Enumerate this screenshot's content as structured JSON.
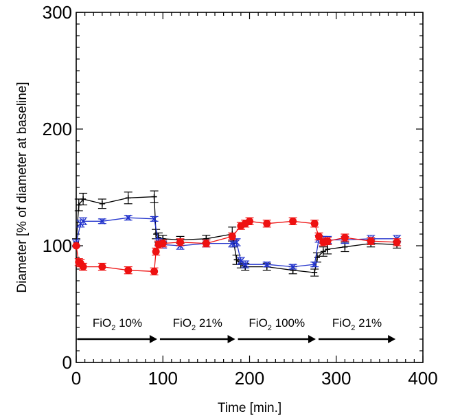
{
  "chart_data": {
    "type": "line",
    "xlabel": "Time [min.]",
    "ylabel": "Diameter [% of diameter at baseline]",
    "xlim": [
      0,
      400
    ],
    "ylim": [
      0,
      300
    ],
    "xticks": [
      "0",
      "100",
      "200",
      "300",
      "400"
    ],
    "yticks": [
      "0",
      "100",
      "200",
      "300"
    ],
    "grid": false,
    "legend": "none",
    "series": [
      {
        "color": "#000000",
        "marker": "plus",
        "points": [
          [
            0,
            103,
            3
          ],
          [
            3,
            135,
            5
          ],
          [
            8,
            140,
            5
          ],
          [
            30,
            136,
            4
          ],
          [
            60,
            141,
            5
          ],
          [
            90,
            142,
            5
          ],
          [
            92,
            110,
            4
          ],
          [
            95,
            107,
            4
          ],
          [
            100,
            106,
            3
          ],
          [
            120,
            105,
            3
          ],
          [
            150,
            106,
            3
          ],
          [
            180,
            110,
            6
          ],
          [
            182,
            102,
            3
          ],
          [
            185,
            88,
            4
          ],
          [
            190,
            84,
            3
          ],
          [
            195,
            82,
            3
          ],
          [
            220,
            82,
            3
          ],
          [
            250,
            79,
            3
          ],
          [
            275,
            77,
            3
          ],
          [
            278,
            90,
            4
          ],
          [
            285,
            95,
            4
          ],
          [
            290,
            97,
            4
          ],
          [
            310,
            99,
            4
          ],
          [
            340,
            102,
            3
          ],
          [
            370,
            101,
            3
          ]
        ]
      },
      {
        "color": "#2233cc",
        "marker": "x",
        "points": [
          [
            0,
            102,
            3
          ],
          [
            5,
            119,
            3
          ],
          [
            8,
            121,
            3
          ],
          [
            30,
            121,
            2
          ],
          [
            60,
            124,
            2
          ],
          [
            90,
            123,
            2
          ],
          [
            95,
            103,
            3
          ],
          [
            100,
            101,
            3
          ],
          [
            120,
            100,
            3
          ],
          [
            150,
            102,
            3
          ],
          [
            180,
            102,
            3
          ],
          [
            185,
            103,
            3
          ],
          [
            190,
            87,
            3
          ],
          [
            195,
            84,
            3
          ],
          [
            220,
            84,
            2
          ],
          [
            250,
            82,
            2
          ],
          [
            275,
            84,
            2
          ],
          [
            280,
            106,
            3
          ],
          [
            285,
            105,
            3
          ],
          [
            290,
            105,
            3
          ],
          [
            310,
            105,
            3
          ],
          [
            340,
            106,
            3
          ],
          [
            370,
            106,
            3
          ]
        ]
      },
      {
        "color": "#ee1111",
        "marker": "dot",
        "points": [
          [
            0,
            100,
            0
          ],
          [
            3,
            86,
            3
          ],
          [
            5,
            85,
            3
          ],
          [
            8,
            82,
            3
          ],
          [
            30,
            82,
            3
          ],
          [
            60,
            79,
            3
          ],
          [
            90,
            78,
            3
          ],
          [
            92,
            95,
            3
          ],
          [
            95,
            101,
            3
          ],
          [
            100,
            102,
            3
          ],
          [
            120,
            103,
            3
          ],
          [
            150,
            102,
            3
          ],
          [
            180,
            108,
            3
          ],
          [
            190,
            117,
            3
          ],
          [
            195,
            119,
            3
          ],
          [
            200,
            121,
            3
          ],
          [
            220,
            119,
            3
          ],
          [
            250,
            121,
            3
          ],
          [
            275,
            119,
            3
          ],
          [
            280,
            108,
            3
          ],
          [
            285,
            103,
            3
          ],
          [
            290,
            104,
            3
          ],
          [
            310,
            107,
            3
          ],
          [
            340,
            104,
            3
          ],
          [
            370,
            103,
            3
          ]
        ]
      }
    ],
    "annotations": [
      {
        "label": "FiO",
        "sub": "2",
        "value": " 10%",
        "x_start": 0,
        "x_end": 95,
        "y": 20
      },
      {
        "label": "FiO",
        "sub": "2",
        "value": " 21%",
        "x_start": 95,
        "x_end": 185,
        "y": 20
      },
      {
        "label": "FiO",
        "sub": "2",
        "value": " 100%",
        "x_start": 185,
        "x_end": 278,
        "y": 20
      },
      {
        "label": "FiO",
        "sub": "2",
        "value": " 21%",
        "x_start": 278,
        "x_end": 370,
        "y": 20
      }
    ]
  }
}
